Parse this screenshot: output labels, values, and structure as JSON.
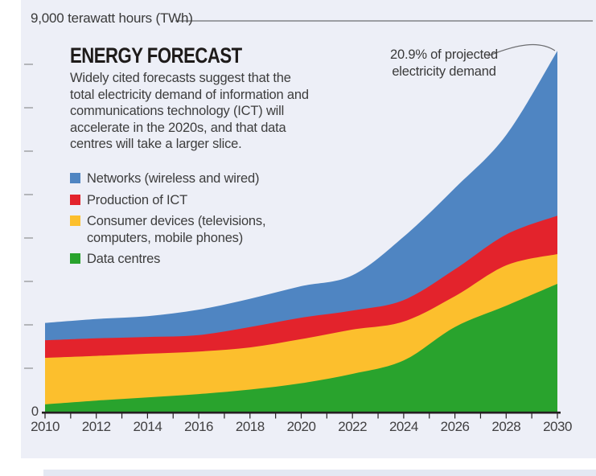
{
  "colors": {
    "panel_background": "#edeff7",
    "networks_blue": "#4f85c2",
    "production_red": "#e3232c",
    "consumer_yellow": "#fcbf2d",
    "datacentres_green": "#29a32d",
    "axis_dark": "#231f20",
    "tick_dash_gray": "#a6a8ab",
    "gridline_gray": "#6d6e71",
    "footer_bar": "#e4e8f3"
  },
  "header": {
    "y_axis_top_label": "9,000 terawatt hours (TWh)"
  },
  "panel": {
    "title": "ENERGY FORECAST",
    "description": "Widely cited forecasts suggest that the\ntotal electricity demand of information and\ncommunications technology (ICT) will\naccelerate in the 2020s, and that data\ncentres will take a larger slice."
  },
  "legend": {
    "items": [
      {
        "label": "Networks (wireless and wired)",
        "color": "#4f85c2"
      },
      {
        "label": "Production of ICT",
        "color": "#e3232c"
      },
      {
        "label": "Consumer devices (televisions,\ncomputers, mobile phones)",
        "color": "#fcbf2d"
      },
      {
        "label": "Data centres",
        "color": "#29a32d"
      }
    ]
  },
  "annotation": {
    "text": "20.9% of projected\nelectricity demand"
  },
  "axes": {
    "x_tick_labels": [
      "2010",
      "2012",
      "2014",
      "2016",
      "2018",
      "2020",
      "2022",
      "2024",
      "2026",
      "2028",
      "2030"
    ],
    "y_zero_label": "0",
    "minor_x_tick_every_years": 1
  },
  "chart_data": {
    "type": "area",
    "stacked": true,
    "title": "ENERGY FORECAST",
    "ylabel": "terawatt hours (TWh)",
    "ylim": [
      0,
      9000
    ],
    "y_gridline_labeled": 9000,
    "x": [
      2010,
      2012,
      2014,
      2016,
      2018,
      2020,
      2022,
      2024,
      2026,
      2028,
      2030
    ],
    "series": [
      {
        "name": "Data centres",
        "color": "#29a32d",
        "values": [
          170,
          255,
          330,
          405,
          510,
          655,
          870,
          1180,
          1950,
          2440,
          2945
        ]
      },
      {
        "name": "Consumer devices (televisions, computers, mobile phones)",
        "color": "#fcbf2d",
        "values": [
          1070,
          1030,
          1005,
          980,
          970,
          1015,
          1020,
          895,
          710,
          930,
          685
        ]
      },
      {
        "name": "Production of ICT",
        "color": "#e3232c",
        "values": [
          405,
          405,
          385,
          380,
          470,
          495,
          440,
          495,
          620,
          710,
          885
        ]
      },
      {
        "name": "Networks (wireless and wired)",
        "color": "#4f85c2",
        "values": [
          400,
          445,
          480,
          585,
          650,
          725,
          810,
          1460,
          1870,
          2290,
          3795
        ]
      }
    ],
    "totals_by_year": [
      2045,
      2135,
      2200,
      2350,
      2600,
      2890,
      3140,
      4030,
      5150,
      6370,
      8310
    ],
    "annotation": "20.9% of projected electricity demand",
    "legend_position": "upper-left",
    "grid": "off"
  }
}
